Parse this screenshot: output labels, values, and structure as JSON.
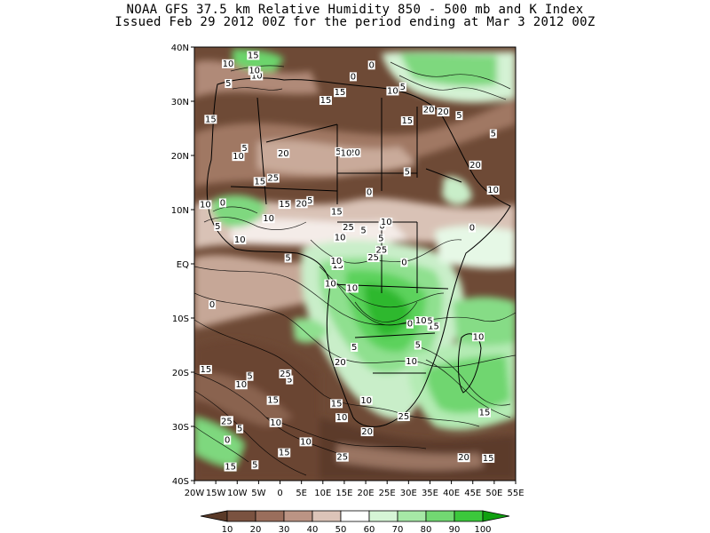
{
  "title_line1": "NOAA GFS 37.5 km Relative Humidity 850 - 500 mb and K Index",
  "title_line2": "Issued Feb 29 2012 00Z for the period ending at Mar 3 2012 00Z",
  "axes": {
    "lat_labels": [
      "40N",
      "30N",
      "20N",
      "10N",
      "EQ",
      "10S",
      "20S",
      "30S",
      "40S"
    ],
    "lon_labels": [
      "20W",
      "15W",
      "10W",
      "5W",
      "0",
      "5E",
      "10E",
      "15E",
      "20E",
      "25E",
      "30E",
      "35E",
      "40E",
      "45E",
      "50E",
      "55E"
    ]
  },
  "colorbar": {
    "tick_labels": [
      "10",
      "20",
      "30",
      "40",
      "50",
      "60",
      "70",
      "80",
      "90",
      "100"
    ],
    "colors": [
      "#5a3a28",
      "#7a5240",
      "#9a6e5c",
      "#bb9484",
      "#dcc4b8",
      "#ffffff",
      "#d6f5d6",
      "#a6e8a6",
      "#72d872",
      "#3cc83c",
      "#10a010"
    ]
  },
  "contour_labels": [
    "10",
    "10",
    "15",
    "20",
    "0",
    "5",
    "5",
    "20",
    "15",
    "25",
    "10",
    "15",
    "10",
    "5",
    "10",
    "5",
    "5",
    "5",
    "0",
    "5",
    "5",
    "0",
    "10",
    "10",
    "10",
    "15",
    "5",
    "15",
    "5",
    "0",
    "10",
    "10",
    "15",
    "10",
    "20",
    "20",
    "25",
    "20",
    "15",
    "5",
    "0",
    "20",
    "10",
    "10",
    "15",
    "10",
    "5",
    "15",
    "10",
    "25",
    "10",
    "20",
    "15",
    "5",
    "25",
    "15",
    "10",
    "10",
    "10",
    "5",
    "0",
    "5",
    "0",
    "25",
    "20",
    "15",
    "10",
    "15",
    "25",
    "15",
    "20",
    "10",
    "10",
    "15",
    "25",
    "5",
    "15",
    "0",
    "15",
    "20",
    "5",
    "5",
    "0",
    "10",
    "25",
    "0",
    "5"
  ]
}
